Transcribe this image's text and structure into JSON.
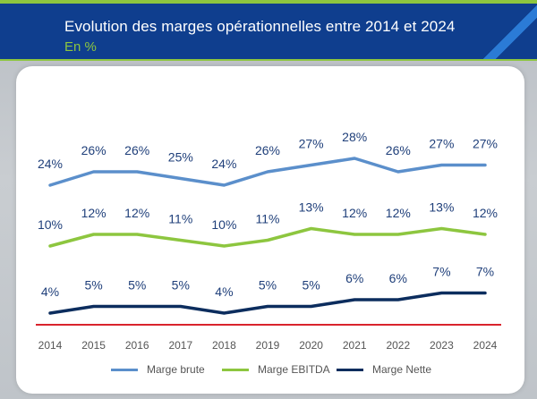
{
  "header": {
    "title": "Evolution des marges opérationnelles entre 2014 et 2024",
    "subtitle": "En %"
  },
  "chart_data": {
    "type": "line",
    "title": "Evolution des marges opérationnelles entre 2014 et 2024",
    "subtitle": "En %",
    "x": [
      "2014",
      "2015",
      "2016",
      "2017",
      "2018",
      "2019",
      "2020",
      "2021",
      "2022",
      "2023",
      "2024"
    ],
    "series": [
      {
        "name": "Marge brute",
        "color": "#5b8fcb",
        "values": [
          24,
          26,
          26,
          25,
          24,
          26,
          27,
          28,
          26,
          27,
          27
        ],
        "labels": [
          "24%",
          "26%",
          "26%",
          "25%",
          "24%",
          "26%",
          "27%",
          "28%",
          "26%",
          "27%",
          "27%"
        ]
      },
      {
        "name": "Marge EBITDA",
        "color": "#8dc63f",
        "values": [
          10,
          12,
          12,
          11,
          10,
          11,
          13,
          12,
          12,
          13,
          12
        ],
        "labels": [
          "10%",
          "12%",
          "12%",
          "11%",
          "10%",
          "11%",
          "13%",
          "12%",
          "12%",
          "13%",
          "12%"
        ]
      },
      {
        "name": "Marge Nette",
        "color": "#0c2d5e",
        "values": [
          4,
          5,
          5,
          5,
          4,
          5,
          5,
          6,
          6,
          7,
          7
        ],
        "labels": [
          "4%",
          "5%",
          "5%",
          "5%",
          "4%",
          "5%",
          "5%",
          "6%",
          "6%",
          "7%",
          "7%"
        ]
      }
    ],
    "baseline_color": "#d9232d",
    "grid": false,
    "legend_position": "bottom"
  }
}
